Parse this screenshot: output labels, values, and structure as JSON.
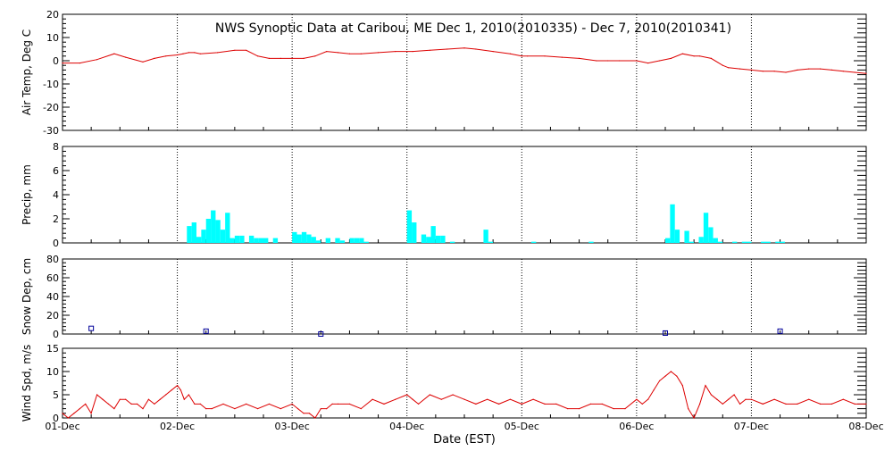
{
  "title": "NWS Synoptic Data at Caribou, ME   Dec  1, 2010(2010335) - Dec  7, 2010(2010341)",
  "xlabel": "Date (EST)",
  "x_ticks": [
    "01-Dec",
    "02-Dec",
    "03-Dec",
    "04-Dec",
    "05-Dec",
    "06-Dec",
    "07-Dec",
    "08-Dec"
  ],
  "colors": {
    "line": "#dd0000",
    "bar": "#00ffff",
    "marker": "#000099",
    "axis": "#000000"
  },
  "chart_data": [
    {
      "id": "air",
      "type": "line",
      "ylabel": "Air Temp, Deg C",
      "ylim": [
        -30,
        20
      ],
      "yticks": [
        -30,
        -20,
        -10,
        0,
        10,
        20
      ],
      "x_unit": "days since 01-Dec 00:00",
      "series": [
        {
          "x": [
            0,
            0.15,
            0.3,
            0.45,
            0.55,
            0.7,
            0.8,
            0.9,
            1.0,
            1.05,
            1.1,
            1.15,
            1.2,
            1.35,
            1.5,
            1.6,
            1.7,
            1.8,
            1.9,
            2.0,
            2.1,
            2.2,
            2.3,
            2.4,
            2.5,
            2.6,
            2.75,
            2.9,
            3.05,
            3.2,
            3.35,
            3.5,
            3.6,
            3.75,
            3.9,
            4.0,
            4.05,
            4.2,
            4.35,
            4.5,
            4.65,
            4.75,
            4.85,
            5.0,
            5.1,
            5.2,
            5.3,
            5.4,
            5.5,
            5.55,
            5.65,
            5.75,
            5.8,
            5.9,
            6.0,
            6.1,
            6.2,
            6.3,
            6.4,
            6.5,
            6.6,
            6.7,
            6.8,
            6.9,
            7.0
          ],
          "values": [
            -1,
            -1,
            0.5,
            3,
            1.5,
            -0.5,
            1,
            2,
            2.5,
            3,
            3.5,
            3.5,
            3,
            3.5,
            4.5,
            4.5,
            2,
            1,
            1,
            1,
            1,
            2,
            4,
            3.5,
            3,
            3,
            3.5,
            4,
            4,
            4.5,
            5,
            5.5,
            5,
            4,
            3,
            2,
            2,
            2,
            1.5,
            1,
            0,
            0,
            0,
            0,
            -1,
            0,
            1,
            3,
            2,
            2,
            1,
            -2,
            -3,
            -3.5,
            -4,
            -4.5,
            -4.5,
            -5,
            -4,
            -3.5,
            -3.5,
            -4,
            -4.5,
            -5,
            -5.5
          ]
        }
      ]
    },
    {
      "id": "precip",
      "type": "bar",
      "ylabel": "Precip, mm",
      "ylim": [
        0,
        8
      ],
      "yticks": [
        0,
        2,
        4,
        6,
        8
      ],
      "x_unit": "hours since 01-Dec 00:00",
      "bar_width_hours": 1,
      "bars": [
        {
          "x": 26,
          "v": 1.4
        },
        {
          "x": 27,
          "v": 1.7
        },
        {
          "x": 28,
          "v": 0.5
        },
        {
          "x": 29,
          "v": 1.1
        },
        {
          "x": 30,
          "v": 2.0
        },
        {
          "x": 31,
          "v": 2.7
        },
        {
          "x": 32,
          "v": 1.9
        },
        {
          "x": 33,
          "v": 1.1
        },
        {
          "x": 34,
          "v": 2.5
        },
        {
          "x": 35,
          "v": 0.4
        },
        {
          "x": 36,
          "v": 0.6
        },
        {
          "x": 37,
          "v": 0.6
        },
        {
          "x": 39,
          "v": 0.6
        },
        {
          "x": 40,
          "v": 0.4
        },
        {
          "x": 41,
          "v": 0.4
        },
        {
          "x": 42,
          "v": 0.4
        },
        {
          "x": 44,
          "v": 0.4
        },
        {
          "x": 48,
          "v": 0.9
        },
        {
          "x": 49,
          "v": 0.7
        },
        {
          "x": 50,
          "v": 0.9
        },
        {
          "x": 51,
          "v": 0.7
        },
        {
          "x": 52,
          "v": 0.5
        },
        {
          "x": 53,
          "v": 0.2
        },
        {
          "x": 55,
          "v": 0.4
        },
        {
          "x": 57,
          "v": 0.4
        },
        {
          "x": 58,
          "v": 0.2
        },
        {
          "x": 60,
          "v": 0.4
        },
        {
          "x": 61,
          "v": 0.4
        },
        {
          "x": 62,
          "v": 0.4
        },
        {
          "x": 63,
          "v": 0.1
        },
        {
          "x": 72,
          "v": 2.7
        },
        {
          "x": 73,
          "v": 1.7
        },
        {
          "x": 75,
          "v": 0.7
        },
        {
          "x": 76,
          "v": 0.5
        },
        {
          "x": 77,
          "v": 1.4
        },
        {
          "x": 78,
          "v": 0.6
        },
        {
          "x": 79,
          "v": 0.6
        },
        {
          "x": 81,
          "v": 0.1
        },
        {
          "x": 88,
          "v": 1.1
        },
        {
          "x": 89,
          "v": 0.1
        },
        {
          "x": 98,
          "v": 0.1
        },
        {
          "x": 110,
          "v": 0.1
        },
        {
          "x": 126,
          "v": 0.4
        },
        {
          "x": 127,
          "v": 3.2
        },
        {
          "x": 128,
          "v": 1.1
        },
        {
          "x": 130,
          "v": 1.0
        },
        {
          "x": 131,
          "v": 0.1
        },
        {
          "x": 133,
          "v": 0.5
        },
        {
          "x": 134,
          "v": 2.5
        },
        {
          "x": 135,
          "v": 1.3
        },
        {
          "x": 136,
          "v": 0.4
        },
        {
          "x": 137,
          "v": 0.1
        },
        {
          "x": 140,
          "v": 0.1
        },
        {
          "x": 142,
          "v": 0.1
        },
        {
          "x": 143,
          "v": 0.1
        },
        {
          "x": 146,
          "v": 0.1
        },
        {
          "x": 147,
          "v": 0.1
        },
        {
          "x": 149,
          "v": 0.1
        },
        {
          "x": 150,
          "v": 0.1
        }
      ]
    },
    {
      "id": "snow",
      "type": "scatter",
      "ylabel": "Snow Dep, cm",
      "ylim": [
        0,
        80
      ],
      "yticks": [
        0,
        20,
        40,
        60,
        80
      ],
      "x_unit": "days since 01-Dec 00:00",
      "points": [
        {
          "x": 0.25,
          "v": 6
        },
        {
          "x": 1.25,
          "v": 3
        },
        {
          "x": 2.25,
          "v": 0
        },
        {
          "x": 5.25,
          "v": 1
        },
        {
          "x": 6.25,
          "v": 3
        }
      ]
    },
    {
      "id": "wind",
      "type": "line",
      "ylabel": "Wind Spd, m/s",
      "ylim": [
        0,
        15
      ],
      "yticks": [
        0,
        5,
        10,
        15
      ],
      "x_unit": "days since 01-Dec 00:00",
      "series": [
        {
          "x": [
            0,
            0.05,
            0.1,
            0.15,
            0.2,
            0.25,
            0.3,
            0.35,
            0.4,
            0.45,
            0.5,
            0.55,
            0.6,
            0.65,
            0.7,
            0.75,
            0.8,
            0.85,
            0.9,
            0.95,
            1.0,
            1.03,
            1.06,
            1.1,
            1.15,
            1.2,
            1.25,
            1.3,
            1.4,
            1.5,
            1.6,
            1.7,
            1.8,
            1.9,
            2.0,
            2.05,
            2.1,
            2.15,
            2.2,
            2.25,
            2.3,
            2.35,
            2.4,
            2.5,
            2.6,
            2.7,
            2.8,
            2.9,
            3.0,
            3.05,
            3.1,
            3.2,
            3.3,
            3.4,
            3.5,
            3.6,
            3.7,
            3.8,
            3.9,
            4.0,
            4.1,
            4.2,
            4.3,
            4.4,
            4.5,
            4.6,
            4.7,
            4.8,
            4.9,
            5.0,
            5.05,
            5.1,
            5.15,
            5.2,
            5.25,
            5.3,
            5.35,
            5.4,
            5.45,
            5.5,
            5.55,
            5.6,
            5.65,
            5.7,
            5.75,
            5.8,
            5.85,
            5.9,
            5.95,
            6.0,
            6.1,
            6.2,
            6.3,
            6.4,
            6.5,
            6.6,
            6.7,
            6.8,
            6.9,
            7.0
          ],
          "values": [
            1,
            0,
            1,
            2,
            3,
            1,
            5,
            4,
            3,
            2,
            4,
            4,
            3,
            3,
            2,
            4,
            3,
            4,
            5,
            6,
            7,
            6,
            4,
            5,
            3,
            3,
            2,
            2,
            3,
            2,
            3,
            2,
            3,
            2,
            3,
            2,
            1,
            1,
            0,
            2,
            2,
            3,
            3,
            3,
            2,
            4,
            3,
            4,
            5,
            4,
            3,
            5,
            4,
            5,
            4,
            3,
            4,
            3,
            4,
            3,
            4,
            3,
            3,
            2,
            2,
            3,
            3,
            2,
            2,
            4,
            3,
            4,
            6,
            8,
            9,
            10,
            9,
            7,
            2,
            0,
            3,
            7,
            5,
            4,
            3,
            4,
            5,
            3,
            4,
            4,
            3,
            4,
            3,
            3,
            4,
            3,
            3,
            4,
            3,
            3
          ]
        }
      ]
    }
  ]
}
